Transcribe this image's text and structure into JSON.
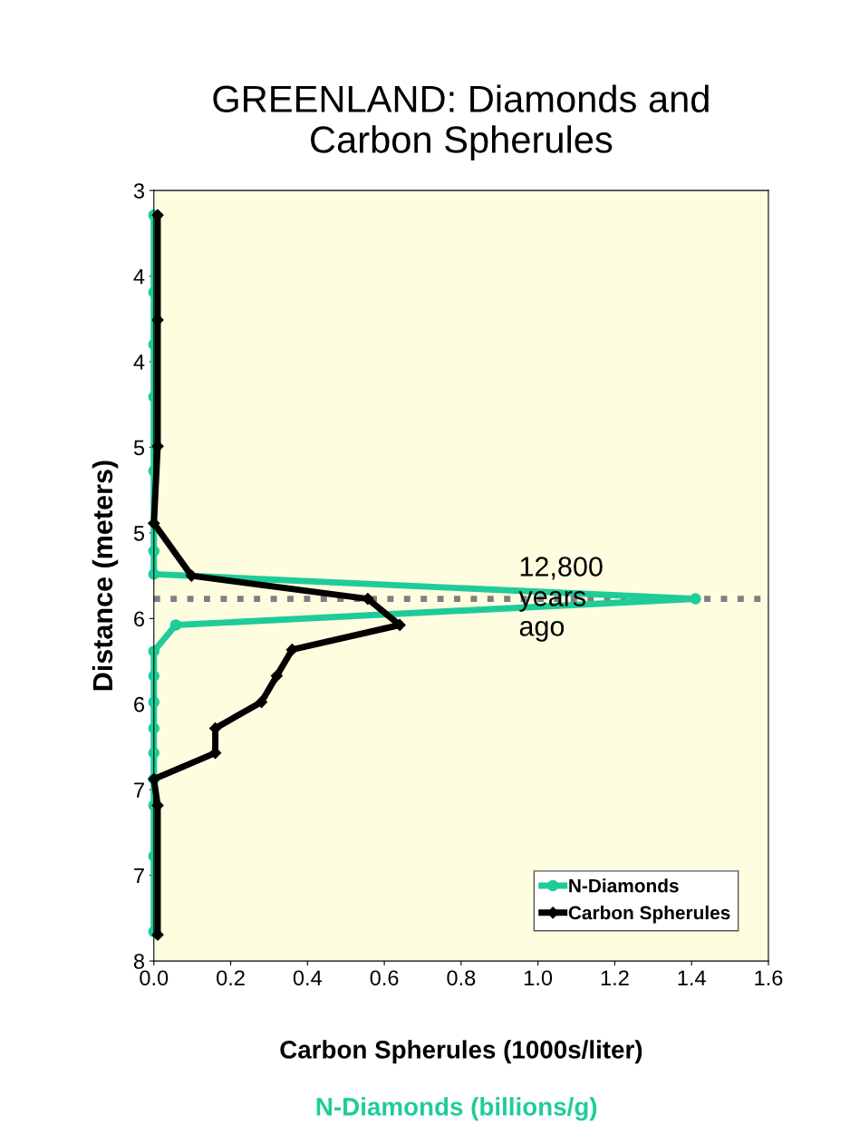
{
  "chart_data": {
    "type": "line",
    "orientation": "horizontal",
    "title": "GREENLAND: Diamonds and\nCarbon Spherules",
    "xlabel": "Carbon Spherules (1000s/liter)",
    "ylabel": "Distance (meters)",
    "annotations": [
      {
        "text": "12,800\nyears\nago",
        "x": 0.95,
        "y": 5.65
      },
      "N-Diamonds (billions/g)"
    ],
    "series": [
      {
        "name": "N-Diamonds",
        "color": "#1fcc99",
        "marker": "circle",
        "x": [
          3.16,
          3.66,
          4.0,
          4.34,
          4.82,
          5.34,
          5.49,
          5.65,
          5.82,
          5.99,
          6.15,
          6.32,
          6.49,
          6.65,
          6.82,
          6.99,
          7.32,
          7.81
        ],
        "values": [
          0,
          0,
          0,
          0,
          0,
          0,
          0,
          1.41,
          0.057,
          0,
          0,
          0,
          0,
          0,
          0,
          0,
          0,
          0
        ]
      },
      {
        "name": "Carbon Spherules",
        "color": "#000000",
        "marker": "diamond",
        "x": [
          3.16,
          3.84,
          4.66,
          5.16,
          5.5,
          5.65,
          5.82,
          5.98,
          6.15,
          6.32,
          6.49,
          6.65,
          6.82,
          6.99,
          7.83
        ],
        "values": [
          0.01,
          0.01,
          0.01,
          0.0,
          0.098,
          0.557,
          0.64,
          0.36,
          0.32,
          0.28,
          0.16,
          0.16,
          0.0,
          0.01,
          0.01
        ]
      }
    ],
    "xlim": [
      0,
      1.6
    ],
    "xticks": [
      {
        "value": 0,
        "label": "0.0"
      },
      0.2,
      0.4,
      0.6,
      0.8,
      {
        "value": 1,
        "label": "1.0"
      },
      1.2,
      1.4,
      1.6
    ],
    "ylim": [
      8,
      3
    ],
    "yticks": [
      {
        "value": 3,
        "label": "3"
      },
      {
        "value": 3.556,
        "label": "4"
      },
      {
        "value": 4.111,
        "label": "4"
      },
      {
        "value": 4.667,
        "label": "5"
      },
      {
        "value": 5.222,
        "label": "5"
      },
      {
        "value": 5.778,
        "label": "6"
      },
      {
        "value": 6.333,
        "label": "6"
      },
      {
        "value": 6.889,
        "label": "7"
      },
      {
        "value": 7.444,
        "label": "7"
      },
      {
        "value": 8,
        "label": "8"
      }
    ],
    "ref_lines": [
      {
        "axis": "y",
        "value": 5.65,
        "color": "#808080",
        "line_style": "dotted"
      }
    ],
    "grid": false,
    "legend": "bottom right"
  }
}
